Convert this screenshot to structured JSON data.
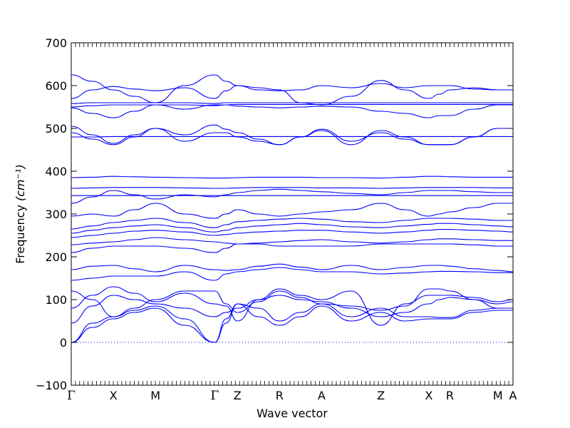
{
  "chart_data": {
    "type": "line",
    "title": "",
    "xlabel": "Wave vector",
    "ylabel": "Frequency",
    "ylabel_unit": "(cm⁻¹)",
    "ylim": [
      -100,
      700
    ],
    "yticks": [
      -100,
      0,
      100,
      200,
      300,
      400,
      500,
      600,
      700
    ],
    "grid": false,
    "line_color": "#0000ff",
    "zero_line_color": "#0000ff",
    "k_path": [
      {
        "label": "Γ",
        "x": 0.0
      },
      {
        "label": "X",
        "x": 1.0
      },
      {
        "label": "M",
        "x": 2.0
      },
      {
        "label": "Γ",
        "x": 3.41
      },
      {
        "label": "Z",
        "x": 3.95
      },
      {
        "label": "R",
        "x": 4.95
      },
      {
        "label": "A",
        "x": 5.95
      },
      {
        "label": "Z",
        "x": 7.36
      },
      {
        "label": "X",
        "x": 8.5
      },
      {
        "label": "R",
        "x": 9.0
      },
      {
        "label": "M",
        "x": 10.14
      },
      {
        "label": "A",
        "x": 10.5
      }
    ],
    "xlim": [
      0,
      10.5
    ],
    "series": [
      {
        "x": [
          0,
          0.5,
          1,
          1.5,
          2,
          2.7,
          3.41,
          3.68,
          3.95,
          4.45,
          4.95,
          5.45,
          5.95,
          6.65,
          7.36,
          7.93,
          8.5,
          8.75,
          9,
          9.57,
          10.14,
          10.5
        ],
        "values": [
          0,
          35,
          55,
          70,
          80,
          40,
          0,
          45,
          90,
          60,
          40,
          60,
          85,
          50,
          70,
          50,
          55,
          55,
          55,
          70,
          75,
          75
        ]
      },
      {
        "x": [
          0,
          0.5,
          1,
          1.5,
          2,
          2.7,
          3.41,
          3.68,
          3.95,
          4.45,
          4.95,
          5.45,
          5.95,
          6.65,
          7.36,
          7.93,
          8.5,
          8.75,
          9,
          9.57,
          10.14,
          10.5
        ],
        "values": [
          0,
          45,
          60,
          75,
          85,
          55,
          0,
          55,
          90,
          80,
          50,
          70,
          90,
          60,
          80,
          60,
          60,
          58,
          58,
          75,
          80,
          80
        ]
      },
      {
        "x": [
          0,
          0.5,
          1,
          1.5,
          2,
          2.7,
          3.41,
          3.68,
          3.95,
          4.45,
          4.95,
          5.45,
          5.95,
          6.65,
          7.36,
          7.93,
          8.5,
          8.75,
          9,
          9.57,
          10.14,
          10.5
        ],
        "values": [
          45,
          85,
          110,
          100,
          90,
          80,
          60,
          70,
          80,
          100,
          110,
          100,
          95,
          80,
          60,
          70,
          90,
          100,
          105,
          100,
          90,
          95
        ]
      },
      {
        "x": [
          0,
          0.5,
          1,
          1.5,
          2,
          2.7,
          3.41,
          3.68,
          3.95,
          4.45,
          4.95,
          5.45,
          5.95,
          6.65,
          7.36,
          7.93,
          8.5,
          8.75,
          9,
          9.57,
          10.14,
          10.5
        ],
        "values": [
          80,
          110,
          130,
          115,
          95,
          115,
          90,
          85,
          50,
          100,
          125,
          110,
          100,
          120,
          40,
          90,
          110,
          110,
          110,
          105,
          95,
          100
        ]
      },
      {
        "x": [
          0,
          0.5,
          1,
          1.5,
          2,
          2.7,
          3.41,
          3.68,
          3.95,
          4.45,
          4.95,
          5.45,
          5.95,
          6.65,
          7.36,
          7.93,
          8.5,
          8.75,
          9,
          9.57,
          10.14,
          10.5
        ],
        "values": [
          120,
          100,
          60,
          80,
          100,
          120,
          120,
          90,
          70,
          95,
          120,
          105,
          90,
          85,
          75,
          85,
          125,
          125,
          120,
          100,
          80,
          80
        ]
      },
      {
        "x": [
          0,
          0.5,
          1,
          1.5,
          2,
          2.7,
          3.41,
          3.68,
          3.95,
          4.45,
          4.95,
          5.45,
          5.95,
          6.65,
          7.36,
          7.93,
          8.5,
          8.75,
          9,
          9.57,
          10.14,
          10.5
        ],
        "values": [
          145,
          150,
          155,
          155,
          155,
          165,
          145,
          160,
          165,
          170,
          175,
          170,
          165,
          165,
          160,
          162,
          165,
          166,
          166,
          165,
          163,
          163
        ]
      },
      {
        "x": [
          0,
          0.5,
          1,
          1.5,
          2,
          2.7,
          3.41,
          3.68,
          3.95,
          4.45,
          4.95,
          5.45,
          5.95,
          6.65,
          7.36,
          7.93,
          8.5,
          8.75,
          9,
          9.57,
          10.14,
          10.5
        ],
        "values": [
          170,
          178,
          180,
          172,
          165,
          180,
          170,
          168,
          170,
          178,
          183,
          176,
          170,
          180,
          170,
          175,
          180,
          180,
          178,
          172,
          168,
          165
        ]
      },
      {
        "x": [
          0,
          0.5,
          1,
          1.5,
          2,
          2.7,
          3.41,
          3.68,
          3.95,
          4.45,
          4.95,
          5.45,
          5.95,
          6.65,
          7.36,
          7.93,
          8.5,
          8.75,
          9,
          9.57,
          10.14,
          10.5
        ],
        "values": [
          210,
          220,
          225,
          225,
          225,
          220,
          210,
          220,
          230,
          230,
          225,
          225,
          225,
          225,
          230,
          230,
          230,
          230,
          230,
          228,
          225,
          225
        ]
      },
      {
        "x": [
          0,
          0.5,
          1,
          1.5,
          2,
          2.7,
          3.41,
          3.68,
          3.95,
          4.45,
          4.95,
          5.45,
          5.95,
          6.65,
          7.36,
          7.93,
          8.5,
          8.75,
          9,
          9.57,
          10.14,
          10.5
        ],
        "values": [
          228,
          232,
          235,
          240,
          245,
          240,
          235,
          232,
          230,
          232,
          235,
          238,
          240,
          235,
          232,
          235,
          240,
          242,
          242,
          240,
          238,
          238
        ]
      },
      {
        "x": [
          0,
          0.5,
          1,
          1.5,
          2,
          2.7,
          3.41,
          3.68,
          3.95,
          4.45,
          4.95,
          5.45,
          5.95,
          6.65,
          7.36,
          7.93,
          8.5,
          8.75,
          9,
          9.57,
          10.14,
          10.5
        ],
        "values": [
          245,
          250,
          255,
          260,
          262,
          258,
          250,
          252,
          255,
          258,
          260,
          262,
          262,
          258,
          255,
          258,
          262,
          264,
          264,
          262,
          260,
          258
        ]
      },
      {
        "x": [
          0,
          0.5,
          1,
          1.5,
          2,
          2.7,
          3.41,
          3.68,
          3.95,
          4.45,
          4.95,
          5.45,
          5.95,
          6.65,
          7.36,
          7.93,
          8.5,
          8.75,
          9,
          9.57,
          10.14,
          10.5
        ],
        "values": [
          255,
          262,
          268,
          272,
          275,
          268,
          258,
          262,
          268,
          272,
          275,
          278,
          275,
          270,
          268,
          272,
          276,
          278,
          278,
          275,
          272,
          270
        ]
      },
      {
        "x": [
          0,
          0.5,
          1,
          1.5,
          2,
          2.7,
          3.41,
          3.68,
          3.95,
          4.45,
          4.95,
          5.45,
          5.95,
          6.65,
          7.36,
          7.93,
          8.5,
          8.75,
          9,
          9.57,
          10.14,
          10.5
        ],
        "values": [
          265,
          272,
          280,
          285,
          290,
          280,
          268,
          275,
          282,
          285,
          288,
          290,
          288,
          282,
          280,
          285,
          290,
          290,
          290,
          288,
          285,
          285
        ]
      },
      {
        "x": [
          0,
          0.5,
          1,
          1.5,
          2,
          2.7,
          3.41,
          3.68,
          3.95,
          4.45,
          4.95,
          5.45,
          5.95,
          6.65,
          7.36,
          7.93,
          8.5,
          8.75,
          9,
          9.57,
          10.14,
          10.5
        ],
        "values": [
          295,
          300,
          295,
          310,
          325,
          300,
          290,
          300,
          310,
          300,
          295,
          300,
          305,
          310,
          325,
          310,
          295,
          300,
          305,
          315,
          325,
          325
        ]
      },
      {
        "x": [
          0,
          0.5,
          1,
          1.5,
          2,
          2.7,
          3.41,
          3.68,
          3.95,
          4.45,
          4.95,
          5.45,
          5.95,
          6.65,
          7.36,
          7.93,
          8.5,
          8.75,
          9,
          9.57,
          10.14,
          10.5
        ],
        "values": [
          325,
          340,
          355,
          345,
          335,
          345,
          340,
          345,
          350,
          355,
          358,
          355,
          352,
          348,
          345,
          350,
          355,
          355,
          355,
          352,
          350,
          350
        ]
      },
      {
        "x": [
          0,
          0.5,
          1,
          1.5,
          2,
          2.7,
          3.41,
          3.68,
          3.95,
          4.45,
          4.95,
          5.45,
          5.95,
          6.65,
          7.36,
          7.93,
          8.5,
          8.75,
          9,
          9.57,
          10.14,
          10.5
        ],
        "values": [
          343,
          343,
          343,
          343,
          343,
          343,
          343,
          343,
          343,
          343,
          343,
          343,
          343,
          343,
          343,
          343,
          343,
          343,
          343,
          343,
          343,
          343
        ]
      },
      {
        "x": [
          0,
          0.5,
          1,
          1.5,
          2,
          2.7,
          3.41,
          3.68,
          3.95,
          4.45,
          4.95,
          5.45,
          5.95,
          6.65,
          7.36,
          7.93,
          8.5,
          8.75,
          9,
          9.57,
          10.14,
          10.5
        ],
        "values": [
          360,
          361,
          362,
          362,
          362,
          361,
          360,
          360,
          361,
          362,
          362,
          362,
          361,
          361,
          360,
          361,
          362,
          362,
          362,
          362,
          361,
          361
        ]
      },
      {
        "x": [
          0,
          0.5,
          1,
          1.5,
          2,
          2.7,
          3.41,
          3.68,
          3.95,
          4.45,
          4.95,
          5.45,
          5.95,
          6.65,
          7.36,
          7.93,
          8.5,
          8.75,
          9,
          9.57,
          10.14,
          10.5
        ],
        "values": [
          385,
          386,
          388,
          387,
          386,
          385,
          384,
          384,
          385,
          386,
          386,
          386,
          385,
          385,
          384,
          386,
          388,
          388,
          387,
          386,
          386,
          386
        ]
      },
      {
        "x": [
          0,
          0.5,
          1,
          1.5,
          2,
          2.7,
          3.41,
          3.68,
          3.95,
          4.45,
          4.95,
          5.45,
          5.95,
          6.65,
          7.36,
          7.93,
          8.5,
          8.75,
          9,
          9.57,
          10.14,
          10.5
        ],
        "values": [
          480,
          480,
          481,
          481,
          481,
          481,
          481,
          481,
          481,
          481,
          481,
          481,
          481,
          481,
          481,
          481,
          481,
          481,
          481,
          481,
          481,
          481
        ]
      },
      {
        "x": [
          0,
          0.5,
          1,
          1.5,
          2,
          2.7,
          3.41,
          3.68,
          3.95,
          4.45,
          4.95,
          5.45,
          5.95,
          6.65,
          7.36,
          7.93,
          8.5,
          8.75,
          9,
          9.57,
          10.14,
          10.5
        ],
        "values": [
          490,
          475,
          462,
          480,
          500,
          470,
          490,
          490,
          480,
          470,
          462,
          480,
          498,
          470,
          490,
          475,
          462,
          462,
          462,
          480,
          500,
          500
        ]
      },
      {
        "x": [
          0,
          0.5,
          1,
          1.5,
          2,
          2.7,
          3.41,
          3.68,
          3.95,
          4.45,
          4.95,
          5.45,
          5.95,
          6.65,
          7.36,
          7.93,
          8.5,
          8.75,
          9,
          9.57,
          10.14,
          10.5
        ],
        "values": [
          505,
          485,
          465,
          485,
          500,
          485,
          508,
          498,
          490,
          475,
          462,
          480,
          495,
          462,
          495,
          480,
          462,
          462,
          462,
          480,
          500,
          500
        ]
      },
      {
        "x": [
          0,
          0.5,
          1,
          1.5,
          2,
          2.7,
          3.41,
          3.68,
          3.95,
          4.45,
          4.95,
          5.45,
          5.95,
          6.65,
          7.36,
          7.93,
          8.5,
          8.75,
          9,
          9.57,
          10.14,
          10.5
        ],
        "values": [
          548,
          535,
          525,
          540,
          555,
          545,
          555,
          555,
          552,
          550,
          548,
          550,
          552,
          550,
          540,
          535,
          525,
          530,
          530,
          545,
          555,
          555
        ]
      },
      {
        "x": [
          0,
          0.5,
          1,
          1.5,
          2,
          2.7,
          3.41,
          3.68,
          3.95,
          4.45,
          4.95,
          5.45,
          5.95,
          6.65,
          7.36,
          7.93,
          8.5,
          8.75,
          9,
          9.57,
          10.14,
          10.5
        ],
        "values": [
          550,
          553,
          555,
          555,
          555,
          555,
          553,
          555,
          556,
          556,
          556,
          556,
          556,
          556,
          556,
          556,
          556,
          556,
          556,
          556,
          556,
          556
        ]
      },
      {
        "x": [
          0,
          0.5,
          1,
          1.5,
          2,
          2.7,
          3.41,
          3.68,
          3.95,
          4.45,
          4.95,
          5.45,
          5.95,
          6.65,
          7.36,
          7.93,
          8.5,
          8.75,
          9,
          9.57,
          10.14,
          10.5
        ],
        "values": [
          558,
          560,
          560,
          560,
          560,
          560,
          558,
          560,
          560,
          560,
          560,
          560,
          560,
          560,
          560,
          560,
          560,
          560,
          560,
          560,
          560,
          560
        ]
      },
      {
        "x": [
          0,
          0.5,
          1,
          1.5,
          2,
          2.7,
          3.41,
          3.68,
          3.95,
          4.45,
          4.95,
          5.45,
          5.95,
          6.65,
          7.36,
          7.93,
          8.5,
          8.75,
          9,
          9.57,
          10.14,
          10.5
        ],
        "values": [
          570,
          590,
          598,
          592,
          588,
          595,
          570,
          588,
          600,
          590,
          588,
          590,
          600,
          595,
          605,
          595,
          600,
          600,
          600,
          592,
          590,
          590
        ]
      },
      {
        "x": [
          0,
          0.5,
          1,
          1.5,
          2,
          2.7,
          3.41,
          3.68,
          3.95,
          4.45,
          4.95,
          5.45,
          5.95,
          6.65,
          7.36,
          7.93,
          8.5,
          8.75,
          9,
          9.57,
          10.14,
          10.5
        ],
        "values": [
          625,
          610,
          590,
          575,
          560,
          600,
          625,
          610,
          600,
          595,
          590,
          560,
          555,
          575,
          612,
          590,
          570,
          580,
          590,
          595,
          590,
          590
        ]
      }
    ]
  }
}
